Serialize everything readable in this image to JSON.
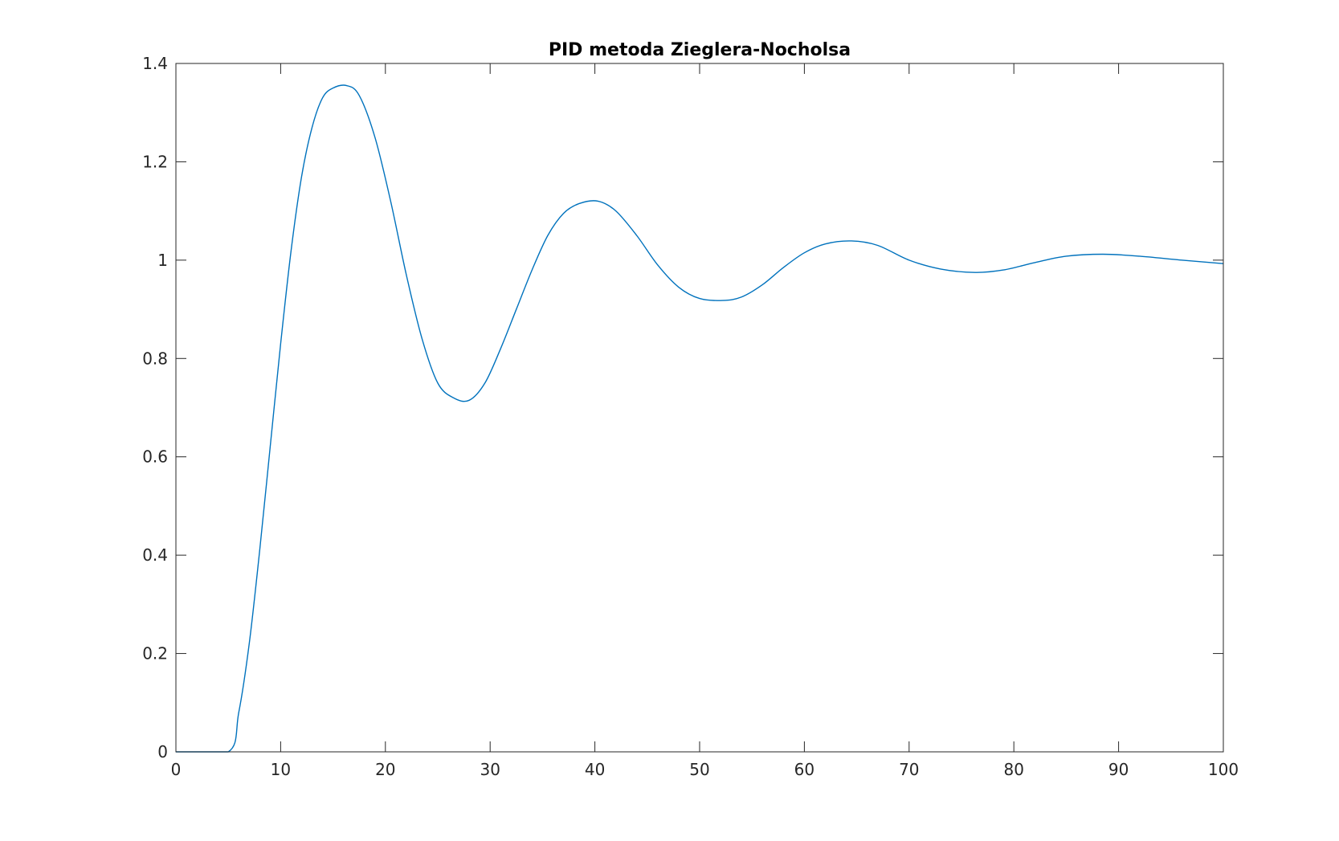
{
  "chart_data": {
    "type": "line",
    "title": "PID metoda Zieglera-Nocholsa",
    "xlabel": "",
    "ylabel": "",
    "xlim": [
      0,
      100
    ],
    "ylim": [
      0,
      1.4
    ],
    "xticks": [
      0,
      10,
      20,
      30,
      40,
      50,
      60,
      70,
      80,
      90,
      100
    ],
    "yticks": [
      0,
      0.2,
      0.4,
      0.6,
      0.8,
      1,
      1.2,
      1.4
    ],
    "xtick_labels": [
      "0",
      "10",
      "20",
      "30",
      "40",
      "50",
      "60",
      "70",
      "80",
      "90",
      "100"
    ],
    "ytick_labels": [
      "0",
      "0.2",
      "0.4",
      "0.6",
      "0.8",
      "1",
      "1.2",
      "1.4"
    ],
    "grid": false,
    "box": true,
    "series": [
      {
        "color": "#0072BD",
        "x": [
          0,
          5,
          6,
          7,
          8,
          9,
          10,
          11,
          12,
          13,
          14,
          15,
          16.3,
          17.5,
          19,
          20.5,
          22,
          23.5,
          25,
          26.5,
          28,
          29.5,
          31,
          32.5,
          34,
          35.5,
          37,
          38.5,
          40.3,
          42,
          44,
          46,
          48,
          50,
          52.2,
          54,
          56,
          58,
          60,
          62,
          64.5,
          67,
          70,
          73,
          76.3,
          79,
          82,
          85,
          88.5,
          92,
          96,
          100
        ],
        "y": [
          0,
          0,
          0.08,
          0.22,
          0.41,
          0.62,
          0.83,
          1.02,
          1.17,
          1.27,
          1.33,
          1.35,
          1.355,
          1.335,
          1.25,
          1.12,
          0.97,
          0.84,
          0.75,
          0.72,
          0.715,
          0.75,
          0.82,
          0.9,
          0.98,
          1.05,
          1.095,
          1.115,
          1.12,
          1.1,
          1.05,
          0.99,
          0.945,
          0.922,
          0.918,
          0.925,
          0.95,
          0.985,
          1.015,
          1.033,
          1.039,
          1.03,
          1.0,
          0.982,
          0.975,
          0.98,
          0.995,
          1.008,
          1.012,
          1.008,
          1.0,
          0.993
        ]
      }
    ]
  }
}
